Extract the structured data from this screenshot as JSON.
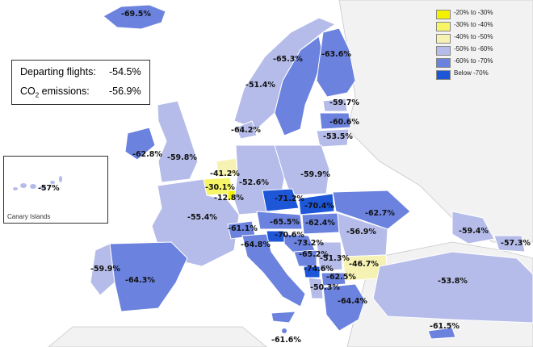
{
  "summary": {
    "departing_label": "Departing flights:",
    "departing_value": "-54.5%",
    "co2_label_main": "CO",
    "co2_label_sub": "2",
    "co2_label_rest": " emissions:",
    "co2_value": "-56.9%"
  },
  "inset": {
    "name": "Canary Islands",
    "value": "-57%"
  },
  "legend": [
    {
      "label": "-20% to -30%",
      "color": "#f4f100"
    },
    {
      "label": "-30% to -40%",
      "color": "#f7f467"
    },
    {
      "label": "-40% to -50%",
      "color": "#f6f2b3"
    },
    {
      "label": "-50% to -60%",
      "color": "#b5bce9"
    },
    {
      "label": "-60% to -70%",
      "color": "#6b82de"
    },
    {
      "label": "Below -70%",
      "color": "#1e56d8"
    }
  ],
  "regions": [
    {
      "name": "Iceland",
      "value": "-69.5%"
    },
    {
      "name": "Norway",
      "value": "-51.4%"
    },
    {
      "name": "Sweden",
      "value": "-65.3%"
    },
    {
      "name": "Finland",
      "value": "-63.6%"
    },
    {
      "name": "Estonia",
      "value": "-59.7%"
    },
    {
      "name": "Latvia",
      "value": "-60.6%"
    },
    {
      "name": "Lithuania",
      "value": "-53.5%"
    },
    {
      "name": "Denmark",
      "value": "-64.2%"
    },
    {
      "name": "Ireland",
      "value": "-62.8%"
    },
    {
      "name": "United Kingdom",
      "value": "-59.8%"
    },
    {
      "name": "Netherlands",
      "value": "-41.2%"
    },
    {
      "name": "Belgium",
      "value": "-30.1%"
    },
    {
      "name": "Luxembourg",
      "value": "-12.8%"
    },
    {
      "name": "Germany",
      "value": "-52.6%"
    },
    {
      "name": "Poland",
      "value": "-59.9%"
    },
    {
      "name": "Czechia",
      "value": "-71.2%"
    },
    {
      "name": "Slovakia",
      "value": "-70.4%"
    },
    {
      "name": "Ukraine",
      "value": "-62.7%"
    },
    {
      "name": "France",
      "value": "-55.4%"
    },
    {
      "name": "Switzerland",
      "value": "-61.1%"
    },
    {
      "name": "Austria",
      "value": "-65.5%"
    },
    {
      "name": "Hungary",
      "value": "-62.4%"
    },
    {
      "name": "Romania",
      "value": "-56.9%"
    },
    {
      "name": "Moldova",
      "value": "-59.4%"
    },
    {
      "name": "Georgia",
      "value": "-57.3%"
    },
    {
      "name": "Slovenia",
      "value": "-70.6%"
    },
    {
      "name": "Croatia",
      "value": "-73.2%"
    },
    {
      "name": "Italy",
      "value": "-64.8%"
    },
    {
      "name": "Serbia",
      "value": "-51.3%"
    },
    {
      "name": "Bosnia and Herzegovina",
      "value": "-65.2%"
    },
    {
      "name": "Montenegro",
      "value": "-74.6%"
    },
    {
      "name": "Bulgaria",
      "value": "-46.7%"
    },
    {
      "name": "North Macedonia",
      "value": "-62.5%"
    },
    {
      "name": "Albania",
      "value": "-50.3%"
    },
    {
      "name": "Greece",
      "value": "-64.4%"
    },
    {
      "name": "Portugal",
      "value": "-59.9%"
    },
    {
      "name": "Spain",
      "value": "-64.3%"
    },
    {
      "name": "Turkey",
      "value": "-53.8%"
    },
    {
      "name": "Malta",
      "value": "-61.6%"
    },
    {
      "name": "Cyprus",
      "value": "-61.5%"
    }
  ]
}
